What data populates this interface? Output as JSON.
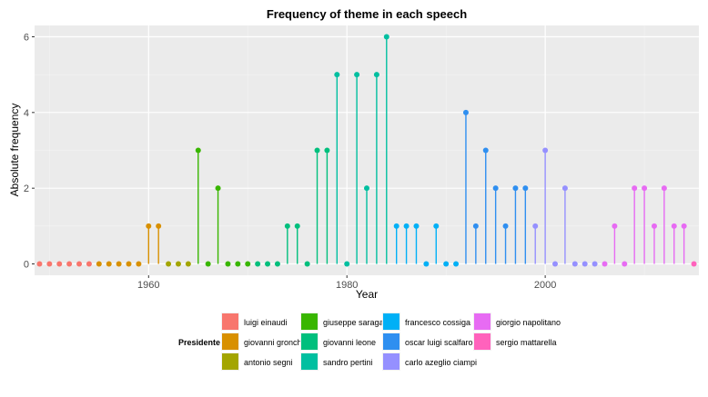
{
  "chart_data": {
    "type": "lollipop",
    "title": "Frequency of theme in each speech",
    "xlabel": "Year",
    "ylabel": "Absolute frequency",
    "xlim": [
      1948.5,
      2015.5
    ],
    "ylim": [
      -0.3,
      6.3
    ],
    "x_ticks": [
      1960,
      1980,
      2000
    ],
    "y_ticks": [
      0,
      2,
      4,
      6
    ],
    "grid": true,
    "legend": {
      "title": "Presidente",
      "position": "bottom",
      "entries": [
        {
          "name": "luigi einaudi",
          "color": "#F8766D"
        },
        {
          "name": "giovanni gronchi",
          "color": "#D89000"
        },
        {
          "name": "antonio segni",
          "color": "#A3A500"
        },
        {
          "name": "giuseppe saragat",
          "color": "#39B600"
        },
        {
          "name": "giovanni leone",
          "color": "#00BF7D"
        },
        {
          "name": "sandro pertini",
          "color": "#00BFA0"
        },
        {
          "name": "francesco cossiga",
          "color": "#00B0F6"
        },
        {
          "name": "oscar luigi scalfaro",
          "color": "#2F8FF0"
        },
        {
          "name": "carlo azeglio ciampi",
          "color": "#9590FF"
        },
        {
          "name": "giorgio napolitano",
          "color": "#E76BF3"
        },
        {
          "name": "sergio mattarella",
          "color": "#FF62BC"
        }
      ]
    },
    "series": [
      {
        "name": "luigi einaudi",
        "color": "#F8766D",
        "points": [
          [
            1949,
            0
          ],
          [
            1950,
            0
          ],
          [
            1951,
            0
          ],
          [
            1952,
            0
          ],
          [
            1953,
            0
          ],
          [
            1954,
            0
          ]
        ]
      },
      {
        "name": "giovanni gronchi",
        "color": "#D89000",
        "points": [
          [
            1955,
            0
          ],
          [
            1956,
            0
          ],
          [
            1957,
            0
          ],
          [
            1958,
            0
          ],
          [
            1959,
            0
          ],
          [
            1960,
            1
          ],
          [
            1961,
            1
          ]
        ]
      },
      {
        "name": "antonio segni",
        "color": "#A3A500",
        "points": [
          [
            1962,
            0
          ],
          [
            1963,
            0
          ],
          [
            1964,
            0
          ]
        ]
      },
      {
        "name": "giuseppe saragat",
        "color": "#39B600",
        "points": [
          [
            1965,
            3
          ],
          [
            1966,
            0
          ],
          [
            1967,
            2
          ],
          [
            1968,
            0
          ],
          [
            1969,
            0
          ],
          [
            1970,
            0
          ]
        ]
      },
      {
        "name": "giovanni leone",
        "color": "#00BF7D",
        "points": [
          [
            1971,
            0
          ],
          [
            1972,
            0
          ],
          [
            1973,
            0
          ],
          [
            1974,
            1
          ],
          [
            1975,
            1
          ],
          [
            1976,
            0
          ],
          [
            1977,
            3
          ],
          [
            1978,
            3
          ]
        ]
      },
      {
        "name": "sandro pertini",
        "color": "#00BFA0",
        "points": [
          [
            1979,
            5
          ],
          [
            1980,
            0
          ],
          [
            1981,
            5
          ],
          [
            1982,
            2
          ],
          [
            1983,
            5
          ],
          [
            1984,
            6
          ]
        ]
      },
      {
        "name": "francesco cossiga",
        "color": "#00B0F6",
        "points": [
          [
            1985,
            1
          ],
          [
            1986,
            1
          ],
          [
            1987,
            1
          ],
          [
            1988,
            0
          ],
          [
            1989,
            1
          ],
          [
            1990,
            0
          ],
          [
            1991,
            0
          ]
        ]
      },
      {
        "name": "oscar luigi scalfaro",
        "color": "#2F8FF0",
        "points": [
          [
            1992,
            4
          ],
          [
            1993,
            1
          ],
          [
            1994,
            3
          ],
          [
            1995,
            2
          ],
          [
            1996,
            1
          ],
          [
            1997,
            2
          ],
          [
            1998,
            2
          ]
        ]
      },
      {
        "name": "carlo azeglio ciampi",
        "color": "#9590FF",
        "points": [
          [
            1999,
            1
          ],
          [
            2000,
            3
          ],
          [
            2001,
            0
          ],
          [
            2002,
            2
          ],
          [
            2003,
            0
          ],
          [
            2004,
            0
          ],
          [
            2005,
            0
          ]
        ]
      },
      {
        "name": "giorgio napolitano",
        "color": "#E76BF3",
        "points": [
          [
            2006,
            0
          ],
          [
            2007,
            1
          ],
          [
            2008,
            0
          ],
          [
            2009,
            2
          ],
          [
            2010,
            2
          ],
          [
            2011,
            1
          ],
          [
            2012,
            2
          ],
          [
            2013,
            1
          ],
          [
            2014,
            1
          ]
        ]
      },
      {
        "name": "sergio mattarella",
        "color": "#FF62BC",
        "points": [
          [
            2015,
            0
          ]
        ]
      }
    ]
  }
}
